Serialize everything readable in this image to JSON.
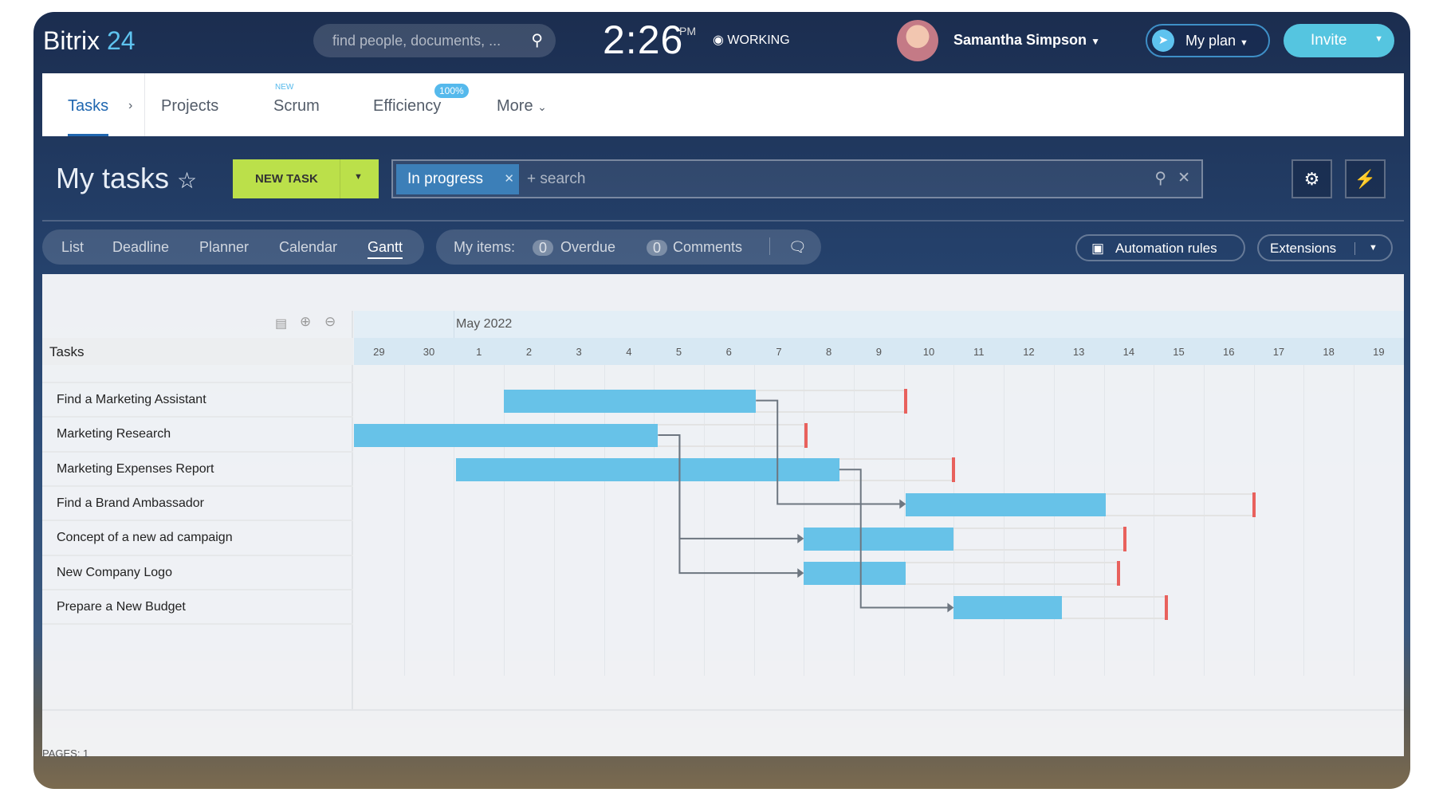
{
  "header": {
    "logo_main": "Bitrix",
    "logo_num": "24",
    "search_placeholder": "find people, documents, ...",
    "clock": "2:26",
    "ampm": "PM",
    "work_status": "WORKING",
    "user_name": "Samantha Simpson",
    "my_plan": "My plan",
    "invite": "Invite"
  },
  "nav": {
    "items": [
      {
        "label": "Tasks",
        "active": true
      },
      {
        "label": "Projects"
      },
      {
        "label": "Scrum",
        "badge": "NEW"
      },
      {
        "label": "Efficiency",
        "badge": "100%"
      },
      {
        "label": "More"
      }
    ]
  },
  "toolbar": {
    "title": "My tasks",
    "new_task": "NEW TASK",
    "filter_tag": "In progress",
    "search_placeholder": "+ search"
  },
  "views": {
    "items": [
      "List",
      "Deadline",
      "Planner",
      "Calendar",
      "Gantt"
    ],
    "active": "Gantt",
    "my_items": "My items:",
    "overdue_count": "0",
    "overdue": "Overdue",
    "comments_count": "0",
    "comments": "Comments",
    "automation": "Automation rules",
    "extensions": "Extensions"
  },
  "gantt": {
    "column_header": "Tasks",
    "month": "May 2022",
    "days": [
      "29",
      "30",
      "1",
      "2",
      "3",
      "4",
      "5",
      "6",
      "7",
      "8",
      "9",
      "10",
      "11",
      "12",
      "13",
      "14",
      "15",
      "16",
      "17",
      "18",
      "19"
    ],
    "tasks": [
      {
        "name": "Find a Marketing Assistant",
        "start": "2022-05-02T00:00",
        "end": "2022-05-07T01:00",
        "deadline": "2022-05-10T01:00"
      },
      {
        "name": "Marketing Research",
        "start": "2022-04-29T00:00",
        "end": "2022-05-05T02:00",
        "deadline": "2022-05-08T01:00"
      },
      {
        "name": "Marketing Expenses Report",
        "start": "2022-05-01T01:00",
        "end": "2022-05-08T17:00",
        "deadline": "2022-05-11T00:00"
      },
      {
        "name": "Find a Brand Ambassador",
        "start": "2022-05-10T01:00",
        "end": "2022-05-14T01:00",
        "deadline": "2022-05-17T00:00"
      },
      {
        "name": "Concept of a new ad campaign",
        "start": "2022-05-08T00:00",
        "end": "2022-05-11T00:00",
        "deadline": "2022-05-14T10:00"
      },
      {
        "name": "New Company Logo",
        "start": "2022-05-08T00:00",
        "end": "2022-05-10T01:00",
        "deadline": "2022-05-14T07:00"
      },
      {
        "name": "Prepare a New Budget",
        "start": "2022-05-11T00:00",
        "end": "2022-05-13T04:00",
        "deadline": "2022-05-15T06:00"
      }
    ],
    "dependencies": [
      [
        0,
        3
      ],
      [
        1,
        4
      ],
      [
        1,
        5
      ],
      [
        2,
        6
      ]
    ],
    "pages": "PAGES: 1"
  },
  "colors": {
    "accent": "#2067b0",
    "bar": "#67c2e8",
    "deadline": "#e8615d",
    "new_task": "#bbe04a",
    "invite": "#55c5e0"
  }
}
